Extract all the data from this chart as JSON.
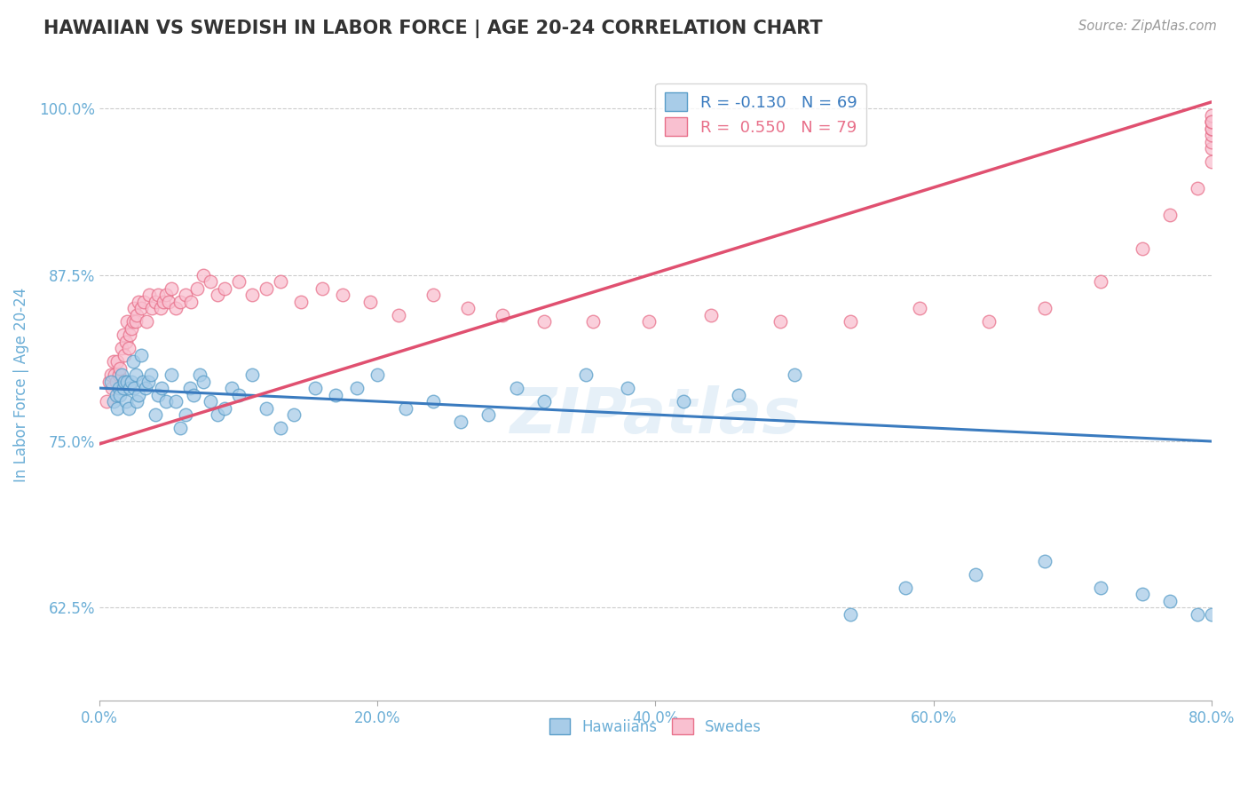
{
  "title": "HAWAIIAN VS SWEDISH IN LABOR FORCE | AGE 20-24 CORRELATION CHART",
  "source": "Source: ZipAtlas.com",
  "ylabel": "In Labor Force | Age 20-24",
  "xlim": [
    0.0,
    0.8
  ],
  "ylim": [
    0.555,
    1.03
  ],
  "yticks": [
    0.625,
    0.75,
    0.875,
    1.0
  ],
  "ytick_labels": [
    "62.5%",
    "75.0%",
    "87.5%",
    "100.0%"
  ],
  "xticks": [
    0.0,
    0.2,
    0.4,
    0.6,
    0.8
  ],
  "xtick_labels": [
    "0.0%",
    "20.0%",
    "40.0%",
    "60.0%",
    "80.0%"
  ],
  "hawaiians_color": "#a8cce8",
  "swedes_color": "#f9c0d0",
  "hawaiians_edge_color": "#5a9ec9",
  "swedes_edge_color": "#e8708a",
  "hawaiians_line_color": "#3a7bbf",
  "swedes_line_color": "#e05070",
  "background_color": "#ffffff",
  "grid_color": "#cccccc",
  "title_color": "#333333",
  "axis_color": "#6baed6",
  "watermark": "ZIPatlas",
  "legend_r1": "R = -0.130",
  "legend_n1": "N = 69",
  "legend_r2": "R =  0.550",
  "legend_n2": "N = 79",
  "legend_label1": "Hawaiians",
  "legend_label2": "Swedes",
  "hawaiians_x": [
    0.008,
    0.01,
    0.012,
    0.013,
    0.014,
    0.015,
    0.016,
    0.017,
    0.018,
    0.019,
    0.02,
    0.021,
    0.022,
    0.023,
    0.024,
    0.025,
    0.026,
    0.027,
    0.028,
    0.03,
    0.031,
    0.033,
    0.035,
    0.037,
    0.04,
    0.042,
    0.045,
    0.048,
    0.052,
    0.055,
    0.058,
    0.062,
    0.065,
    0.068,
    0.072,
    0.075,
    0.08,
    0.085,
    0.09,
    0.095,
    0.1,
    0.11,
    0.12,
    0.13,
    0.14,
    0.155,
    0.17,
    0.185,
    0.2,
    0.22,
    0.24,
    0.26,
    0.28,
    0.3,
    0.32,
    0.35,
    0.38,
    0.42,
    0.46,
    0.5,
    0.54,
    0.58,
    0.63,
    0.68,
    0.72,
    0.75,
    0.77,
    0.79,
    0.8
  ],
  "hawaiians_y": [
    0.795,
    0.78,
    0.785,
    0.775,
    0.79,
    0.785,
    0.8,
    0.79,
    0.795,
    0.78,
    0.795,
    0.775,
    0.79,
    0.795,
    0.81,
    0.79,
    0.8,
    0.78,
    0.785,
    0.815,
    0.795,
    0.79,
    0.795,
    0.8,
    0.77,
    0.785,
    0.79,
    0.78,
    0.8,
    0.78,
    0.76,
    0.77,
    0.79,
    0.785,
    0.8,
    0.795,
    0.78,
    0.77,
    0.775,
    0.79,
    0.785,
    0.8,
    0.775,
    0.76,
    0.77,
    0.79,
    0.785,
    0.79,
    0.8,
    0.775,
    0.78,
    0.765,
    0.77,
    0.79,
    0.78,
    0.8,
    0.79,
    0.78,
    0.785,
    0.8,
    0.62,
    0.64,
    0.65,
    0.66,
    0.64,
    0.635,
    0.63,
    0.62,
    0.62
  ],
  "swedes_x": [
    0.005,
    0.007,
    0.008,
    0.009,
    0.01,
    0.011,
    0.012,
    0.013,
    0.014,
    0.015,
    0.016,
    0.017,
    0.018,
    0.019,
    0.02,
    0.021,
    0.022,
    0.023,
    0.024,
    0.025,
    0.026,
    0.027,
    0.028,
    0.03,
    0.032,
    0.034,
    0.036,
    0.038,
    0.04,
    0.042,
    0.044,
    0.046,
    0.048,
    0.05,
    0.052,
    0.055,
    0.058,
    0.062,
    0.066,
    0.07,
    0.075,
    0.08,
    0.085,
    0.09,
    0.1,
    0.11,
    0.12,
    0.13,
    0.145,
    0.16,
    0.175,
    0.195,
    0.215,
    0.24,
    0.265,
    0.29,
    0.32,
    0.355,
    0.395,
    0.44,
    0.49,
    0.54,
    0.59,
    0.64,
    0.68,
    0.72,
    0.75,
    0.77,
    0.79,
    0.8,
    0.8,
    0.8,
    0.8,
    0.8,
    0.8,
    0.8,
    0.8,
    0.8,
    0.8
  ],
  "swedes_y": [
    0.78,
    0.795,
    0.8,
    0.79,
    0.81,
    0.8,
    0.795,
    0.81,
    0.8,
    0.805,
    0.82,
    0.83,
    0.815,
    0.825,
    0.84,
    0.82,
    0.83,
    0.835,
    0.84,
    0.85,
    0.84,
    0.845,
    0.855,
    0.85,
    0.855,
    0.84,
    0.86,
    0.85,
    0.855,
    0.86,
    0.85,
    0.855,
    0.86,
    0.855,
    0.865,
    0.85,
    0.855,
    0.86,
    0.855,
    0.865,
    0.875,
    0.87,
    0.86,
    0.865,
    0.87,
    0.86,
    0.865,
    0.87,
    0.855,
    0.865,
    0.86,
    0.855,
    0.845,
    0.86,
    0.85,
    0.845,
    0.84,
    0.84,
    0.84,
    0.845,
    0.84,
    0.84,
    0.85,
    0.84,
    0.85,
    0.87,
    0.895,
    0.92,
    0.94,
    0.96,
    0.97,
    0.975,
    0.98,
    0.985,
    0.99,
    0.985,
    0.99,
    0.995,
    0.99
  ]
}
